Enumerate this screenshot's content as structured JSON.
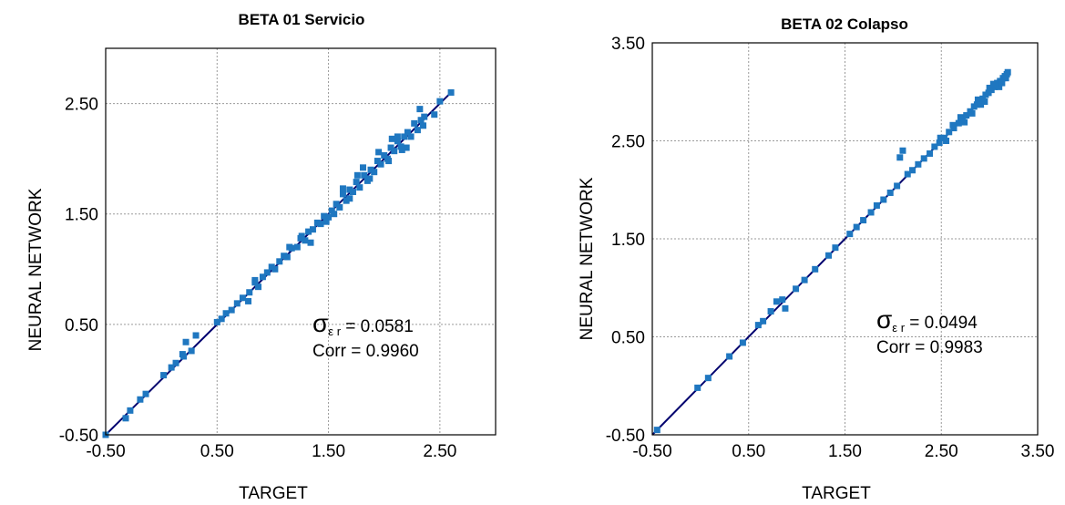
{
  "chart_data": [
    {
      "type": "scatter",
      "title": "BETA 01  Servicio",
      "xlabel": "TARGET",
      "ylabel": "NEURAL NETWORK",
      "xlim": [
        -0.5,
        3.0
      ],
      "ylim": [
        -0.5,
        3.0
      ],
      "xticks": [
        "-0.50",
        "0.50",
        "1.50",
        "2.50"
      ],
      "yticks": [
        "-0.50",
        "0.50",
        "1.50",
        "2.50"
      ],
      "grid": true,
      "reference_line": {
        "from": [
          -0.5,
          -0.5
        ],
        "to": [
          2.6,
          2.6
        ],
        "color": "#00006e"
      },
      "marker_color": "#1f77c0",
      "annotation": {
        "sigma_symbol": "σ",
        "sigma_subscript": "ε r",
        "sigma_value": " = 0.0581",
        "corr": "Corr = 0.9960"
      },
      "series": [
        {
          "x": [
            -0.5,
            -0.32,
            -0.28,
            -0.19,
            -0.14,
            0.02,
            0.09,
            0.13,
            0.19,
            0.2,
            0.27,
            0.31,
            0.5,
            0.54,
            0.58,
            0.63,
            0.68,
            0.73,
            0.79,
            0.84,
            0.87,
            0.91,
            0.95,
            0.99,
            1.02,
            1.06,
            1.1,
            1.13,
            1.17,
            1.22,
            1.25,
            1.29,
            1.32,
            1.36,
            1.4,
            1.43,
            1.46,
            1.5,
            1.53,
            1.57,
            1.6,
            1.63,
            1.66,
            1.69,
            1.72,
            1.75,
            1.78,
            1.82,
            1.85,
            1.88,
            1.91,
            1.94,
            1.97,
            2.0,
            2.03,
            2.06,
            2.09,
            2.12,
            2.15,
            2.18,
            2.21,
            2.24,
            2.27,
            2.3,
            2.33,
            2.36,
            2.45,
            2.5,
            2.6,
            0.22,
            0.78,
            0.84,
            1.26,
            1.34,
            1.63,
            1.69,
            1.76,
            1.95,
            2.04,
            2.12,
            2.2,
            2.32,
            2.35,
            1.15,
            1.48,
            1.55,
            1.81,
            1.87,
            2.07,
            2.16
          ],
          "y": [
            -0.5,
            -0.35,
            -0.28,
            -0.18,
            -0.13,
            0.04,
            0.11,
            0.15,
            0.23,
            0.21,
            0.26,
            0.4,
            0.52,
            0.55,
            0.6,
            0.63,
            0.69,
            0.74,
            0.79,
            0.88,
            0.84,
            0.93,
            0.97,
            1.02,
            1.0,
            1.07,
            1.12,
            1.11,
            1.19,
            1.2,
            1.28,
            1.26,
            1.34,
            1.36,
            1.42,
            1.41,
            1.48,
            1.47,
            1.53,
            1.59,
            1.56,
            1.68,
            1.62,
            1.72,
            1.7,
            1.79,
            1.74,
            1.85,
            1.8,
            1.9,
            1.88,
            1.98,
            1.95,
            2.03,
            2.0,
            2.1,
            2.07,
            2.16,
            2.11,
            2.2,
            2.24,
            2.2,
            2.32,
            2.26,
            2.35,
            2.38,
            2.4,
            2.52,
            2.6,
            0.34,
            0.71,
            0.9,
            1.3,
            1.24,
            1.73,
            1.64,
            1.85,
            2.06,
            1.98,
            2.2,
            2.1,
            2.45,
            2.3,
            1.2,
            1.43,
            1.5,
            1.92,
            1.82,
            2.18,
            2.08
          ]
        }
      ]
    },
    {
      "type": "scatter",
      "title": "BETA 02  Colapso",
      "xlabel": "TARGET",
      "ylabel": "NEURAL NETWORK",
      "xlim": [
        -0.5,
        3.5
      ],
      "ylim": [
        -0.5,
        3.5
      ],
      "xticks": [
        "-0.50",
        "0.50",
        "1.50",
        "2.50",
        "3.50"
      ],
      "yticks": [
        "-0.50",
        "0.50",
        "1.50",
        "2.50",
        "3.50"
      ],
      "grid": true,
      "reference_line": {
        "from": [
          -0.5,
          -0.5
        ],
        "to": [
          3.2,
          3.2
        ],
        "color": "#00006e"
      },
      "marker_color": "#1f77c0",
      "annotation": {
        "sigma_symbol": "σ",
        "sigma_subscript": "ε r",
        "sigma_value": " = 0.0494",
        "corr": "Corr = 0.9983"
      },
      "series": [
        {
          "x": [
            -0.45,
            -0.03,
            0.08,
            0.3,
            0.44,
            0.6,
            0.65,
            0.73,
            0.79,
            0.85,
            0.88,
            0.99,
            1.08,
            1.19,
            1.33,
            1.4,
            1.55,
            1.62,
            1.69,
            1.77,
            1.83,
            1.9,
            1.97,
            2.04,
            2.07,
            2.1,
            2.15,
            2.2,
            2.26,
            2.32,
            2.38,
            2.43,
            2.48,
            2.53,
            2.58,
            2.63,
            2.68,
            2.72,
            2.76,
            2.8,
            2.84,
            2.87,
            2.9,
            2.93,
            2.96,
            2.99,
            3.02,
            3.05,
            3.08,
            3.11,
            3.14,
            3.16,
            3.18,
            3.19,
            2.49,
            2.55,
            2.7,
            2.74,
            2.95,
            3.0,
            3.1,
            3.17,
            2.82,
            2.88,
            2.62,
            2.91,
            3.04,
            3.13
          ],
          "y": [
            -0.45,
            -0.02,
            0.08,
            0.3,
            0.44,
            0.62,
            0.66,
            0.76,
            0.86,
            0.88,
            0.79,
            0.99,
            1.08,
            1.19,
            1.33,
            1.41,
            1.55,
            1.62,
            1.69,
            1.77,
            1.84,
            1.9,
            1.97,
            2.04,
            2.33,
            2.4,
            2.16,
            2.2,
            2.26,
            2.32,
            2.37,
            2.44,
            2.48,
            2.53,
            2.59,
            2.63,
            2.68,
            2.73,
            2.76,
            2.8,
            2.85,
            2.87,
            2.91,
            2.93,
            2.97,
            2.99,
            3.02,
            3.05,
            3.09,
            3.11,
            3.14,
            3.16,
            3.18,
            3.2,
            2.53,
            2.5,
            2.74,
            2.69,
            2.9,
            3.04,
            3.05,
            3.14,
            2.78,
            2.92,
            2.66,
            2.87,
            3.08,
            3.09
          ]
        }
      ]
    }
  ]
}
